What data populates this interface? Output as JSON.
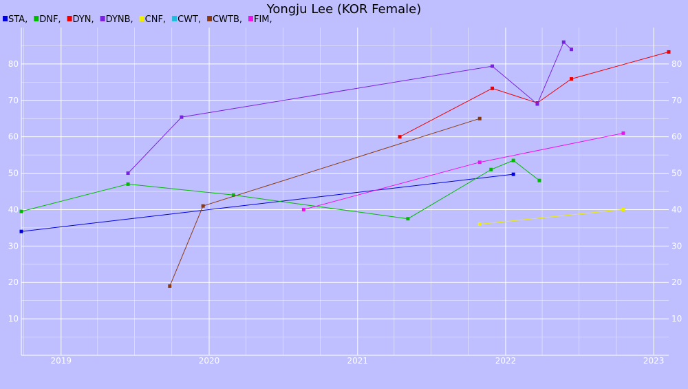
{
  "chart_data": {
    "type": "line",
    "title": "Yongju Lee (KOR Female)",
    "xlabel": "",
    "ylabel": "",
    "ylim": [
      0,
      90
    ],
    "xlim": [
      "2018-09-25",
      "2023-02-07"
    ],
    "x_ticks": [
      "2019",
      "2020",
      "2021",
      "2022",
      "2023"
    ],
    "y_ticks": [
      10,
      20,
      30,
      40,
      50,
      60,
      70,
      80
    ],
    "grid": true,
    "legend_position": "top-left",
    "series": [
      {
        "name": "STA",
        "legend_label": "STA,",
        "color": "#0000dd",
        "points": [
          [
            "2018-09-25",
            34
          ],
          [
            "2022-01-20",
            49.7
          ]
        ]
      },
      {
        "name": "DNF",
        "legend_label": "DNF,",
        "color": "#00bb00",
        "points": [
          [
            "2018-09-25",
            39.5
          ],
          [
            "2019-06-15",
            47
          ],
          [
            "2020-03-01",
            44
          ],
          [
            "2021-05-05",
            37.5
          ],
          [
            "2021-11-26",
            51
          ],
          [
            "2022-01-20",
            53.5
          ],
          [
            "2022-03-25",
            48
          ]
        ]
      },
      {
        "name": "DYN",
        "legend_label": "DYN,",
        "color": "#ee0000",
        "points": [
          [
            "2021-04-15",
            60
          ],
          [
            "2021-11-29",
            73.3
          ],
          [
            "2022-03-20",
            69.3
          ],
          [
            "2022-06-12",
            75.9
          ],
          [
            "2023-02-07",
            83.3
          ]
        ]
      },
      {
        "name": "DYNB",
        "legend_label": "DYNB,",
        "color": "#7b20e0",
        "points": [
          [
            "2019-06-15",
            50
          ],
          [
            "2019-10-25",
            65.4
          ],
          [
            "2021-11-29",
            79.4
          ],
          [
            "2022-03-20",
            69
          ],
          [
            "2022-05-24",
            86
          ],
          [
            "2022-06-12",
            84
          ]
        ]
      },
      {
        "name": "CNF",
        "legend_label": "CNF,",
        "color": "#eeee00",
        "points": [
          [
            "2021-10-29",
            36
          ],
          [
            "2022-10-18",
            40
          ]
        ]
      },
      {
        "name": "CWT",
        "legend_label": "CWT,",
        "color": "#22bbdd",
        "points": []
      },
      {
        "name": "CWTB",
        "legend_label": "CWTB,",
        "color": "#8b3a0f",
        "points": [
          [
            "2019-09-26",
            19
          ],
          [
            "2019-12-17",
            41
          ],
          [
            "2021-10-29",
            65
          ]
        ]
      },
      {
        "name": "FIM",
        "legend_label": "FIM,",
        "color": "#ee11ee",
        "points": [
          [
            "2020-08-21",
            40
          ],
          [
            "2021-10-29",
            53
          ],
          [
            "2022-10-18",
            61
          ]
        ]
      }
    ]
  }
}
